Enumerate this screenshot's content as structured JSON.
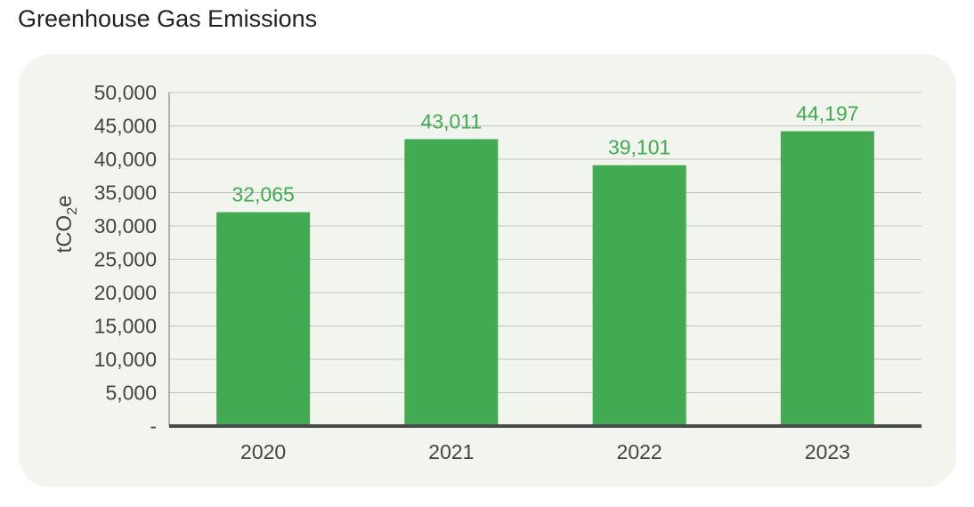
{
  "page": {
    "title": "Greenhouse Gas Emissions"
  },
  "chart_data": {
    "type": "bar",
    "title": "Greenhouse Gas Emissions",
    "categories": [
      "2020",
      "2021",
      "2022",
      "2023"
    ],
    "values": [
      32065,
      43011,
      39101,
      44197
    ],
    "data_labels": [
      "32,065",
      "43,011",
      "39,101",
      "44,197"
    ],
    "ylabel_main": "tCO",
    "ylabel_sub": "2",
    "ylabel_tail": "e",
    "ylim": [
      0,
      50000
    ],
    "yticks": [
      0,
      5000,
      10000,
      15000,
      20000,
      25000,
      30000,
      35000,
      40000,
      45000,
      50000
    ],
    "ytick_labels": [
      "-",
      "5,000",
      "10,000",
      "15,000",
      "20,000",
      "25,000",
      "30,000",
      "35,000",
      "40,000",
      "45,000",
      "50,000"
    ],
    "grid": true,
    "colors": {
      "bar": "#42aa52",
      "label": "#42aa52",
      "grid": "#c2c2c2",
      "baseline": "#4a4a4a"
    }
  }
}
